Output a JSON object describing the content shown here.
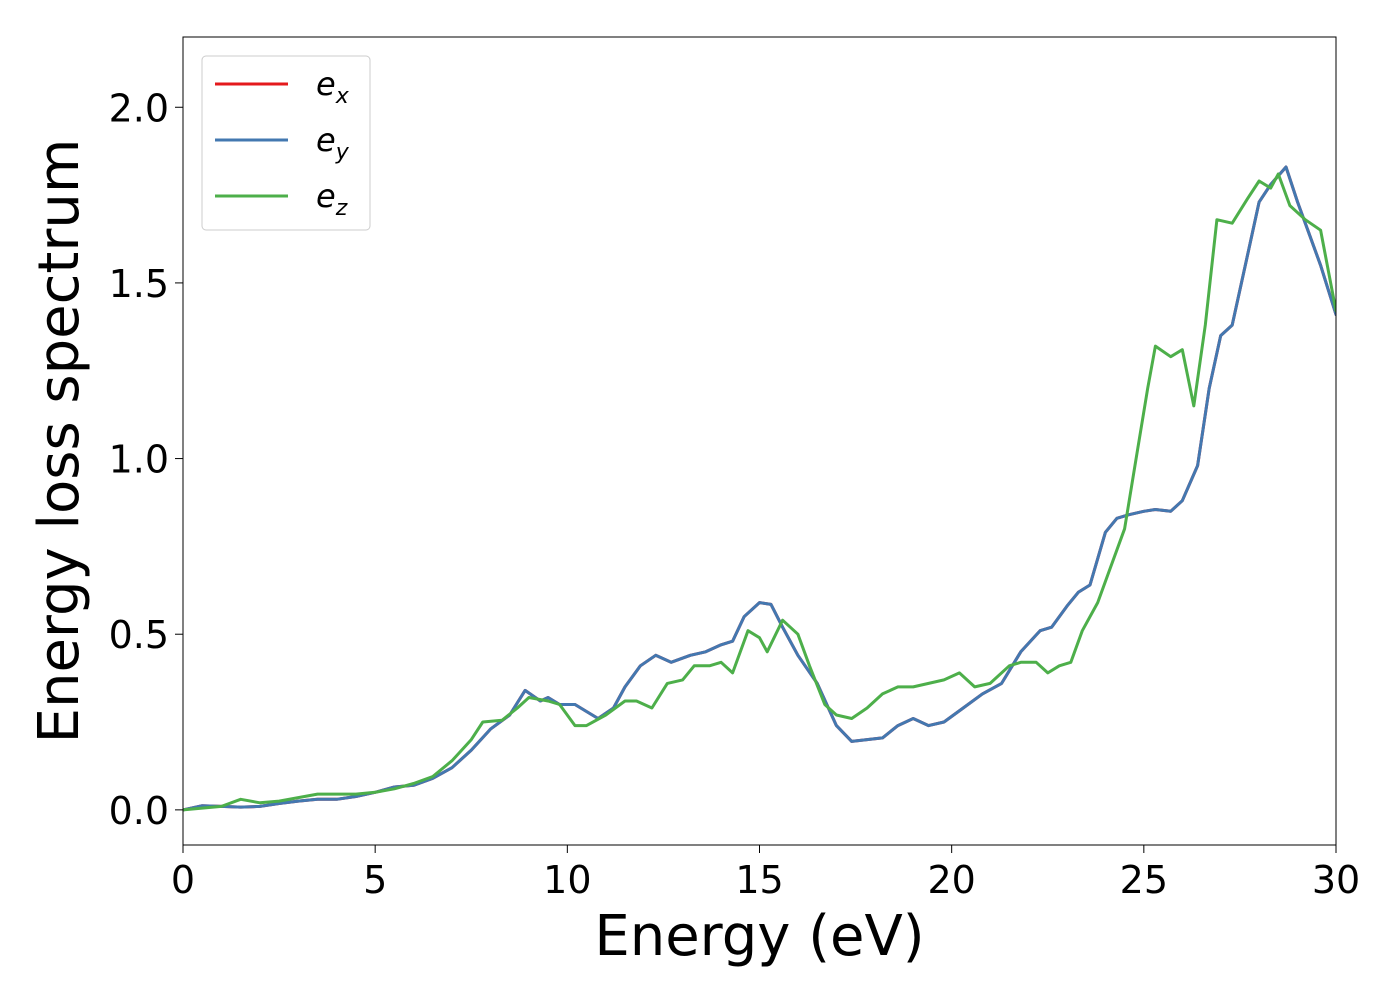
{
  "chart_data": {
    "type": "line",
    "title": "",
    "xlabel": "Energy (eV)",
    "ylabel": "Energy loss spectrum",
    "xlim": [
      0,
      30
    ],
    "ylim": [
      -0.1,
      2.2
    ],
    "xticks": [
      0,
      5,
      10,
      15,
      20,
      25,
      30
    ],
    "xtick_labels": [
      "0",
      "5",
      "10",
      "15",
      "20",
      "25",
      "30"
    ],
    "yticks": [
      0.0,
      0.5,
      1.0,
      1.5,
      2.0
    ],
    "ytick_labels": [
      "0.0",
      "0.5",
      "1.0",
      "1.5",
      "2.0"
    ],
    "grid": false,
    "legend_position": "top-left",
    "series": [
      {
        "name": "e_x",
        "label_base": "e",
        "label_sub": "x",
        "color": "#e41a1c",
        "points": [
          [
            0,
            0
          ],
          [
            0.5,
            0.012
          ],
          [
            1,
            0.01
          ],
          [
            1.5,
            0.008
          ],
          [
            2,
            0.01
          ],
          [
            2.5,
            0.018
          ],
          [
            3,
            0.025
          ],
          [
            3.5,
            0.03
          ],
          [
            4,
            0.03
          ],
          [
            4.5,
            0.038
          ],
          [
            5,
            0.05
          ],
          [
            5.5,
            0.065
          ],
          [
            6,
            0.07
          ],
          [
            6.5,
            0.09
          ],
          [
            7,
            0.12
          ],
          [
            7.5,
            0.17
          ],
          [
            8,
            0.23
          ],
          [
            8.5,
            0.27
          ],
          [
            8.9,
            0.34
          ],
          [
            9.3,
            0.31
          ],
          [
            9.5,
            0.32
          ],
          [
            9.8,
            0.3
          ],
          [
            10.2,
            0.3
          ],
          [
            10.5,
            0.28
          ],
          [
            10.8,
            0.26
          ],
          [
            11.2,
            0.29
          ],
          [
            11.5,
            0.35
          ],
          [
            11.9,
            0.41
          ],
          [
            12.3,
            0.44
          ],
          [
            12.7,
            0.42
          ],
          [
            13.2,
            0.44
          ],
          [
            13.6,
            0.45
          ],
          [
            14,
            0.47
          ],
          [
            14.3,
            0.48
          ],
          [
            14.6,
            0.55
          ],
          [
            15,
            0.59
          ],
          [
            15.3,
            0.585
          ],
          [
            15.6,
            0.52
          ],
          [
            16,
            0.44
          ],
          [
            16.5,
            0.36
          ],
          [
            17,
            0.24
          ],
          [
            17.4,
            0.195
          ],
          [
            17.8,
            0.2
          ],
          [
            18.2,
            0.205
          ],
          [
            18.6,
            0.24
          ],
          [
            19,
            0.26
          ],
          [
            19.4,
            0.24
          ],
          [
            19.8,
            0.25
          ],
          [
            20.3,
            0.29
          ],
          [
            20.8,
            0.33
          ],
          [
            21.3,
            0.36
          ],
          [
            21.8,
            0.45
          ],
          [
            22.3,
            0.51
          ],
          [
            22.6,
            0.52
          ],
          [
            23,
            0.58
          ],
          [
            23.3,
            0.62
          ],
          [
            23.6,
            0.64
          ],
          [
            24,
            0.79
          ],
          [
            24.3,
            0.83
          ],
          [
            24.6,
            0.84
          ],
          [
            25,
            0.85
          ],
          [
            25.3,
            0.855
          ],
          [
            25.7,
            0.85
          ],
          [
            26,
            0.88
          ],
          [
            26.4,
            0.98
          ],
          [
            26.7,
            1.2
          ],
          [
            27,
            1.35
          ],
          [
            27.3,
            1.38
          ],
          [
            27.7,
            1.58
          ],
          [
            28,
            1.73
          ],
          [
            28.3,
            1.78
          ],
          [
            28.7,
            1.83
          ],
          [
            29,
            1.73
          ],
          [
            29.3,
            1.64
          ],
          [
            29.6,
            1.55
          ],
          [
            30,
            1.41
          ]
        ]
      },
      {
        "name": "e_y",
        "label_base": "e",
        "label_sub": "y",
        "color": "#4378b0",
        "points": [
          [
            0,
            0
          ],
          [
            0.5,
            0.012
          ],
          [
            1,
            0.01
          ],
          [
            1.5,
            0.008
          ],
          [
            2,
            0.01
          ],
          [
            2.5,
            0.018
          ],
          [
            3,
            0.025
          ],
          [
            3.5,
            0.03
          ],
          [
            4,
            0.03
          ],
          [
            4.5,
            0.038
          ],
          [
            5,
            0.05
          ],
          [
            5.5,
            0.065
          ],
          [
            6,
            0.07
          ],
          [
            6.5,
            0.09
          ],
          [
            7,
            0.12
          ],
          [
            7.5,
            0.17
          ],
          [
            8,
            0.23
          ],
          [
            8.5,
            0.27
          ],
          [
            8.9,
            0.34
          ],
          [
            9.3,
            0.31
          ],
          [
            9.5,
            0.32
          ],
          [
            9.8,
            0.3
          ],
          [
            10.2,
            0.3
          ],
          [
            10.5,
            0.28
          ],
          [
            10.8,
            0.26
          ],
          [
            11.2,
            0.29
          ],
          [
            11.5,
            0.35
          ],
          [
            11.9,
            0.41
          ],
          [
            12.3,
            0.44
          ],
          [
            12.7,
            0.42
          ],
          [
            13.2,
            0.44
          ],
          [
            13.6,
            0.45
          ],
          [
            14,
            0.47
          ],
          [
            14.3,
            0.48
          ],
          [
            14.6,
            0.55
          ],
          [
            15,
            0.59
          ],
          [
            15.3,
            0.585
          ],
          [
            15.6,
            0.52
          ],
          [
            16,
            0.44
          ],
          [
            16.5,
            0.36
          ],
          [
            17,
            0.24
          ],
          [
            17.4,
            0.195
          ],
          [
            17.8,
            0.2
          ],
          [
            18.2,
            0.205
          ],
          [
            18.6,
            0.24
          ],
          [
            19,
            0.26
          ],
          [
            19.4,
            0.24
          ],
          [
            19.8,
            0.25
          ],
          [
            20.3,
            0.29
          ],
          [
            20.8,
            0.33
          ],
          [
            21.3,
            0.36
          ],
          [
            21.8,
            0.45
          ],
          [
            22.3,
            0.51
          ],
          [
            22.6,
            0.52
          ],
          [
            23,
            0.58
          ],
          [
            23.3,
            0.62
          ],
          [
            23.6,
            0.64
          ],
          [
            24,
            0.79
          ],
          [
            24.3,
            0.83
          ],
          [
            24.6,
            0.84
          ],
          [
            25,
            0.85
          ],
          [
            25.3,
            0.855
          ],
          [
            25.7,
            0.85
          ],
          [
            26,
            0.88
          ],
          [
            26.4,
            0.98
          ],
          [
            26.7,
            1.2
          ],
          [
            27,
            1.35
          ],
          [
            27.3,
            1.38
          ],
          [
            27.7,
            1.58
          ],
          [
            28,
            1.73
          ],
          [
            28.3,
            1.78
          ],
          [
            28.7,
            1.83
          ],
          [
            29,
            1.73
          ],
          [
            29.3,
            1.64
          ],
          [
            29.6,
            1.55
          ],
          [
            30,
            1.41
          ]
        ]
      },
      {
        "name": "e_z",
        "label_base": "e",
        "label_sub": "z",
        "color": "#4daf4a",
        "points": [
          [
            0,
            0
          ],
          [
            0.5,
            0.005
          ],
          [
            1,
            0.01
          ],
          [
            1.5,
            0.03
          ],
          [
            2,
            0.02
          ],
          [
            2.5,
            0.025
          ],
          [
            3,
            0.035
          ],
          [
            3.5,
            0.045
          ],
          [
            4,
            0.045
          ],
          [
            4.5,
            0.045
          ],
          [
            5,
            0.05
          ],
          [
            5.5,
            0.06
          ],
          [
            6,
            0.075
          ],
          [
            6.5,
            0.095
          ],
          [
            7,
            0.14
          ],
          [
            7.5,
            0.2
          ],
          [
            7.8,
            0.25
          ],
          [
            8.3,
            0.255
          ],
          [
            8.7,
            0.29
          ],
          [
            9,
            0.32
          ],
          [
            9.5,
            0.31
          ],
          [
            9.8,
            0.3
          ],
          [
            10.2,
            0.24
          ],
          [
            10.5,
            0.24
          ],
          [
            11,
            0.27
          ],
          [
            11.5,
            0.31
          ],
          [
            11.8,
            0.31
          ],
          [
            12.2,
            0.29
          ],
          [
            12.6,
            0.36
          ],
          [
            13,
            0.37
          ],
          [
            13.3,
            0.41
          ],
          [
            13.7,
            0.41
          ],
          [
            14,
            0.42
          ],
          [
            14.3,
            0.39
          ],
          [
            14.7,
            0.51
          ],
          [
            15,
            0.49
          ],
          [
            15.2,
            0.45
          ],
          [
            15.6,
            0.54
          ],
          [
            16,
            0.5
          ],
          [
            16.3,
            0.41
          ],
          [
            16.7,
            0.3
          ],
          [
            17,
            0.27
          ],
          [
            17.4,
            0.26
          ],
          [
            17.8,
            0.29
          ],
          [
            18.2,
            0.33
          ],
          [
            18.6,
            0.35
          ],
          [
            19,
            0.35
          ],
          [
            19.4,
            0.36
          ],
          [
            19.8,
            0.37
          ],
          [
            20.2,
            0.39
          ],
          [
            20.6,
            0.35
          ],
          [
            21,
            0.36
          ],
          [
            21.5,
            0.41
          ],
          [
            21.8,
            0.42
          ],
          [
            22.2,
            0.42
          ],
          [
            22.5,
            0.39
          ],
          [
            22.8,
            0.41
          ],
          [
            23.1,
            0.42
          ],
          [
            23.4,
            0.51
          ],
          [
            23.8,
            0.59
          ],
          [
            24.1,
            0.68
          ],
          [
            24.5,
            0.8
          ],
          [
            24.8,
            1.0
          ],
          [
            25.1,
            1.2
          ],
          [
            25.3,
            1.32
          ],
          [
            25.7,
            1.29
          ],
          [
            26,
            1.31
          ],
          [
            26.3,
            1.15
          ],
          [
            26.6,
            1.38
          ],
          [
            26.9,
            1.68
          ],
          [
            27.3,
            1.67
          ],
          [
            27.7,
            1.74
          ],
          [
            28,
            1.79
          ],
          [
            28.3,
            1.77
          ],
          [
            28.5,
            1.81
          ],
          [
            28.8,
            1.72
          ],
          [
            29.2,
            1.68
          ],
          [
            29.6,
            1.65
          ],
          [
            30,
            1.42
          ]
        ]
      }
    ]
  }
}
